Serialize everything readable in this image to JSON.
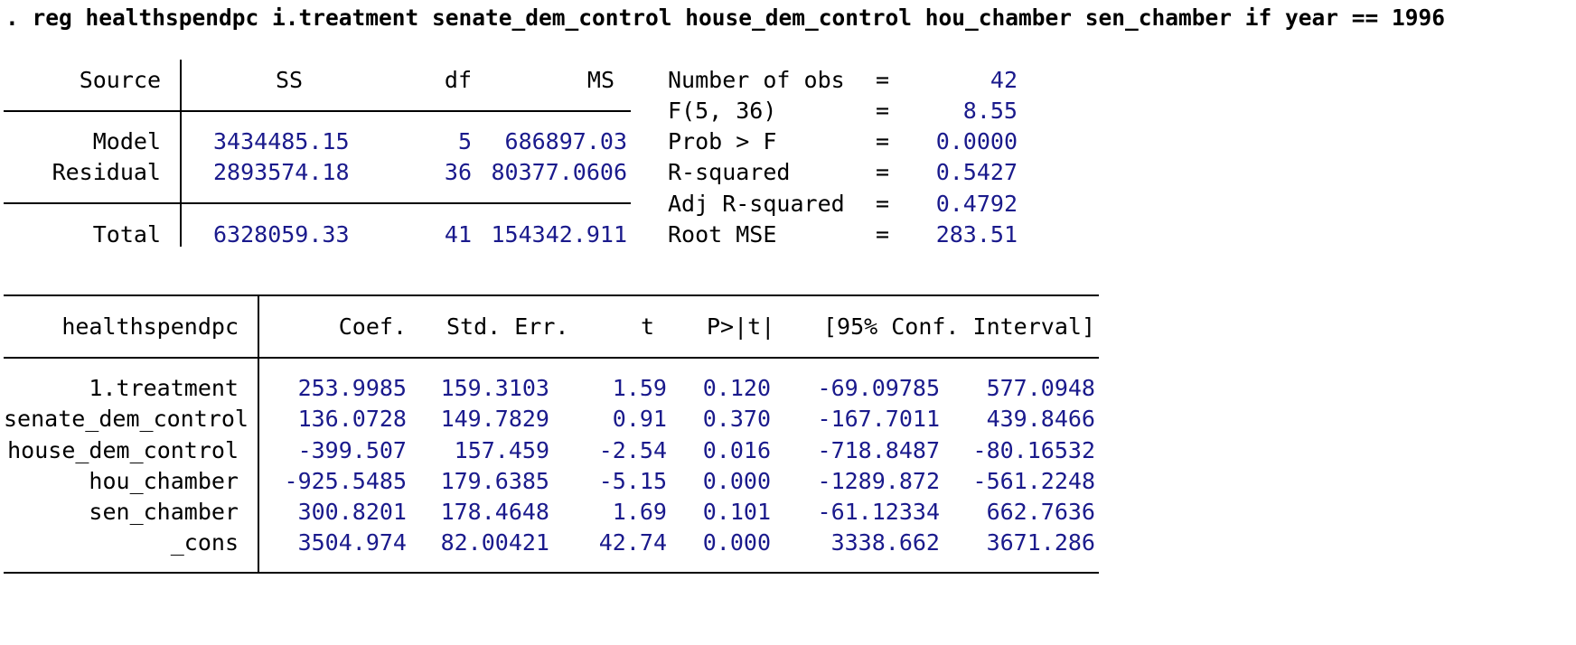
{
  "command": ". reg healthspendpc i.treatment senate_dem_control house_dem_control hou_chamber sen_chamber if year == 1996",
  "anova": {
    "headers": {
      "source": "Source",
      "ss": "SS",
      "df": "df",
      "ms": "MS"
    },
    "rows": [
      {
        "source": "Model",
        "ss": "3434485.15",
        "df": "5",
        "ms": "686897.03"
      },
      {
        "source": "Residual",
        "ss": "2893574.18",
        "df": "36",
        "ms": "80377.0606"
      }
    ],
    "total": {
      "source": "Total",
      "ss": "6328059.33",
      "df": "41",
      "ms": "154342.911"
    }
  },
  "stats": [
    {
      "label": "Number of obs",
      "eq": "=",
      "value": "42"
    },
    {
      "label": "F(5, 36)",
      "eq": "=",
      "value": "8.55"
    },
    {
      "label": "Prob > F",
      "eq": "=",
      "value": "0.0000"
    },
    {
      "label": "R-squared",
      "eq": "=",
      "value": "0.5427"
    },
    {
      "label": "Adj R-squared",
      "eq": "=",
      "value": "0.4792"
    },
    {
      "label": "Root MSE",
      "eq": "=",
      "value": "283.51"
    }
  ],
  "coef_table": {
    "headers": {
      "depvar": "healthspendpc",
      "coef": "Coef.",
      "se": "Std. Err.",
      "t": "t",
      "p": "P>|t|",
      "ci": "[95% Conf. Interval]"
    },
    "rows": [
      {
        "var": "1.treatment",
        "coef": "253.9985",
        "se": "159.3103",
        "t": "1.59",
        "p": "0.120",
        "lo": "-69.09785",
        "hi": "577.0948"
      },
      {
        "var": "senate_dem_control",
        "coef": "136.0728",
        "se": "149.7829",
        "t": "0.91",
        "p": "0.370",
        "lo": "-167.7011",
        "hi": "439.8466"
      },
      {
        "var": "house_dem_control",
        "coef": "-399.507",
        "se": "157.459",
        "t": "-2.54",
        "p": "0.016",
        "lo": "-718.8487",
        "hi": "-80.16532"
      },
      {
        "var": "hou_chamber",
        "coef": "-925.5485",
        "se": "179.6385",
        "t": "-5.15",
        "p": "0.000",
        "lo": "-1289.872",
        "hi": "-561.2248"
      },
      {
        "var": "sen_chamber",
        "coef": "300.8201",
        "se": "178.4648",
        "t": "1.69",
        "p": "0.101",
        "lo": "-61.12334",
        "hi": "662.7636"
      },
      {
        "var": "_cons",
        "coef": "3504.974",
        "se": "82.00421",
        "t": "42.74",
        "p": "0.000",
        "lo": "3338.662",
        "hi": "3671.286"
      }
    ]
  }
}
